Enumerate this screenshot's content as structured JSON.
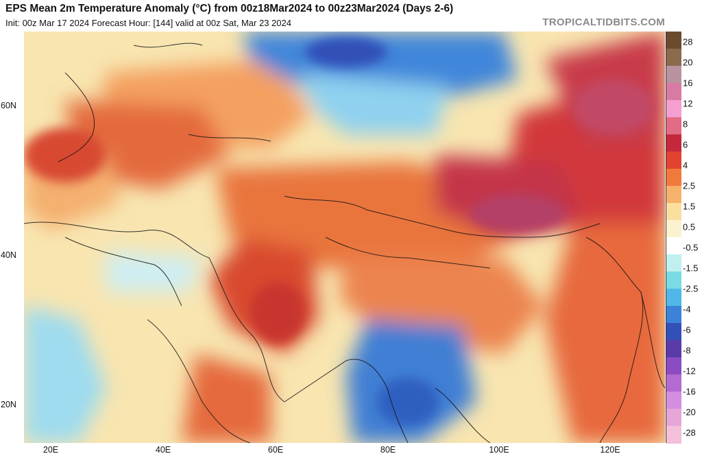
{
  "header": {
    "title": "EPS Mean 2m Temperature Anomaly (°C) from 00z18Mar2024 to 00z23Mar2024 (Days 2-6)",
    "subtitle": "Init: 00z Mar 17 2024   Forecast Hour: [144]   valid at 00z Sat, Mar 23 2024",
    "brand": "TROPICALTIDBITS.COM"
  },
  "axes": {
    "lat_labels": [
      "60N",
      "40N",
      "20N"
    ],
    "lon_labels": [
      "20E",
      "40E",
      "60E",
      "80E",
      "100E",
      "120E"
    ]
  },
  "colorbar": {
    "labels": [
      "28",
      "20",
      "16",
      "12",
      "8",
      "6",
      "4",
      "2.5",
      "1.5",
      "0.5",
      "-0.5",
      "-1.5",
      "-2.5",
      "-4",
      "-6",
      "-8",
      "-12",
      "-16",
      "-20",
      "-28"
    ],
    "colors": [
      "#6b4a2e",
      "#8c6a4e",
      "#b8939f",
      "#d77ba4",
      "#f59fd0",
      "#e26b86",
      "#c4283c",
      "#e2422f",
      "#f07a3c",
      "#f6b26b",
      "#fbdf9e",
      "#fbf3cf",
      "#ffffff",
      "#bff0ef",
      "#79dbe5",
      "#4fb8e8",
      "#3b82d8",
      "#3350b8",
      "#5a3aa8",
      "#8a4cc0",
      "#b46ad0",
      "#d48ee0",
      "#e6a6d8",
      "#f2c0d8"
    ]
  },
  "map": {
    "label_colors": {
      "warm": "#e2522f",
      "hot": "#c52c3a",
      "very_hot": "#b23a5c",
      "cool": "#8ed0ee",
      "cold": "#3f7fd4"
    }
  }
}
